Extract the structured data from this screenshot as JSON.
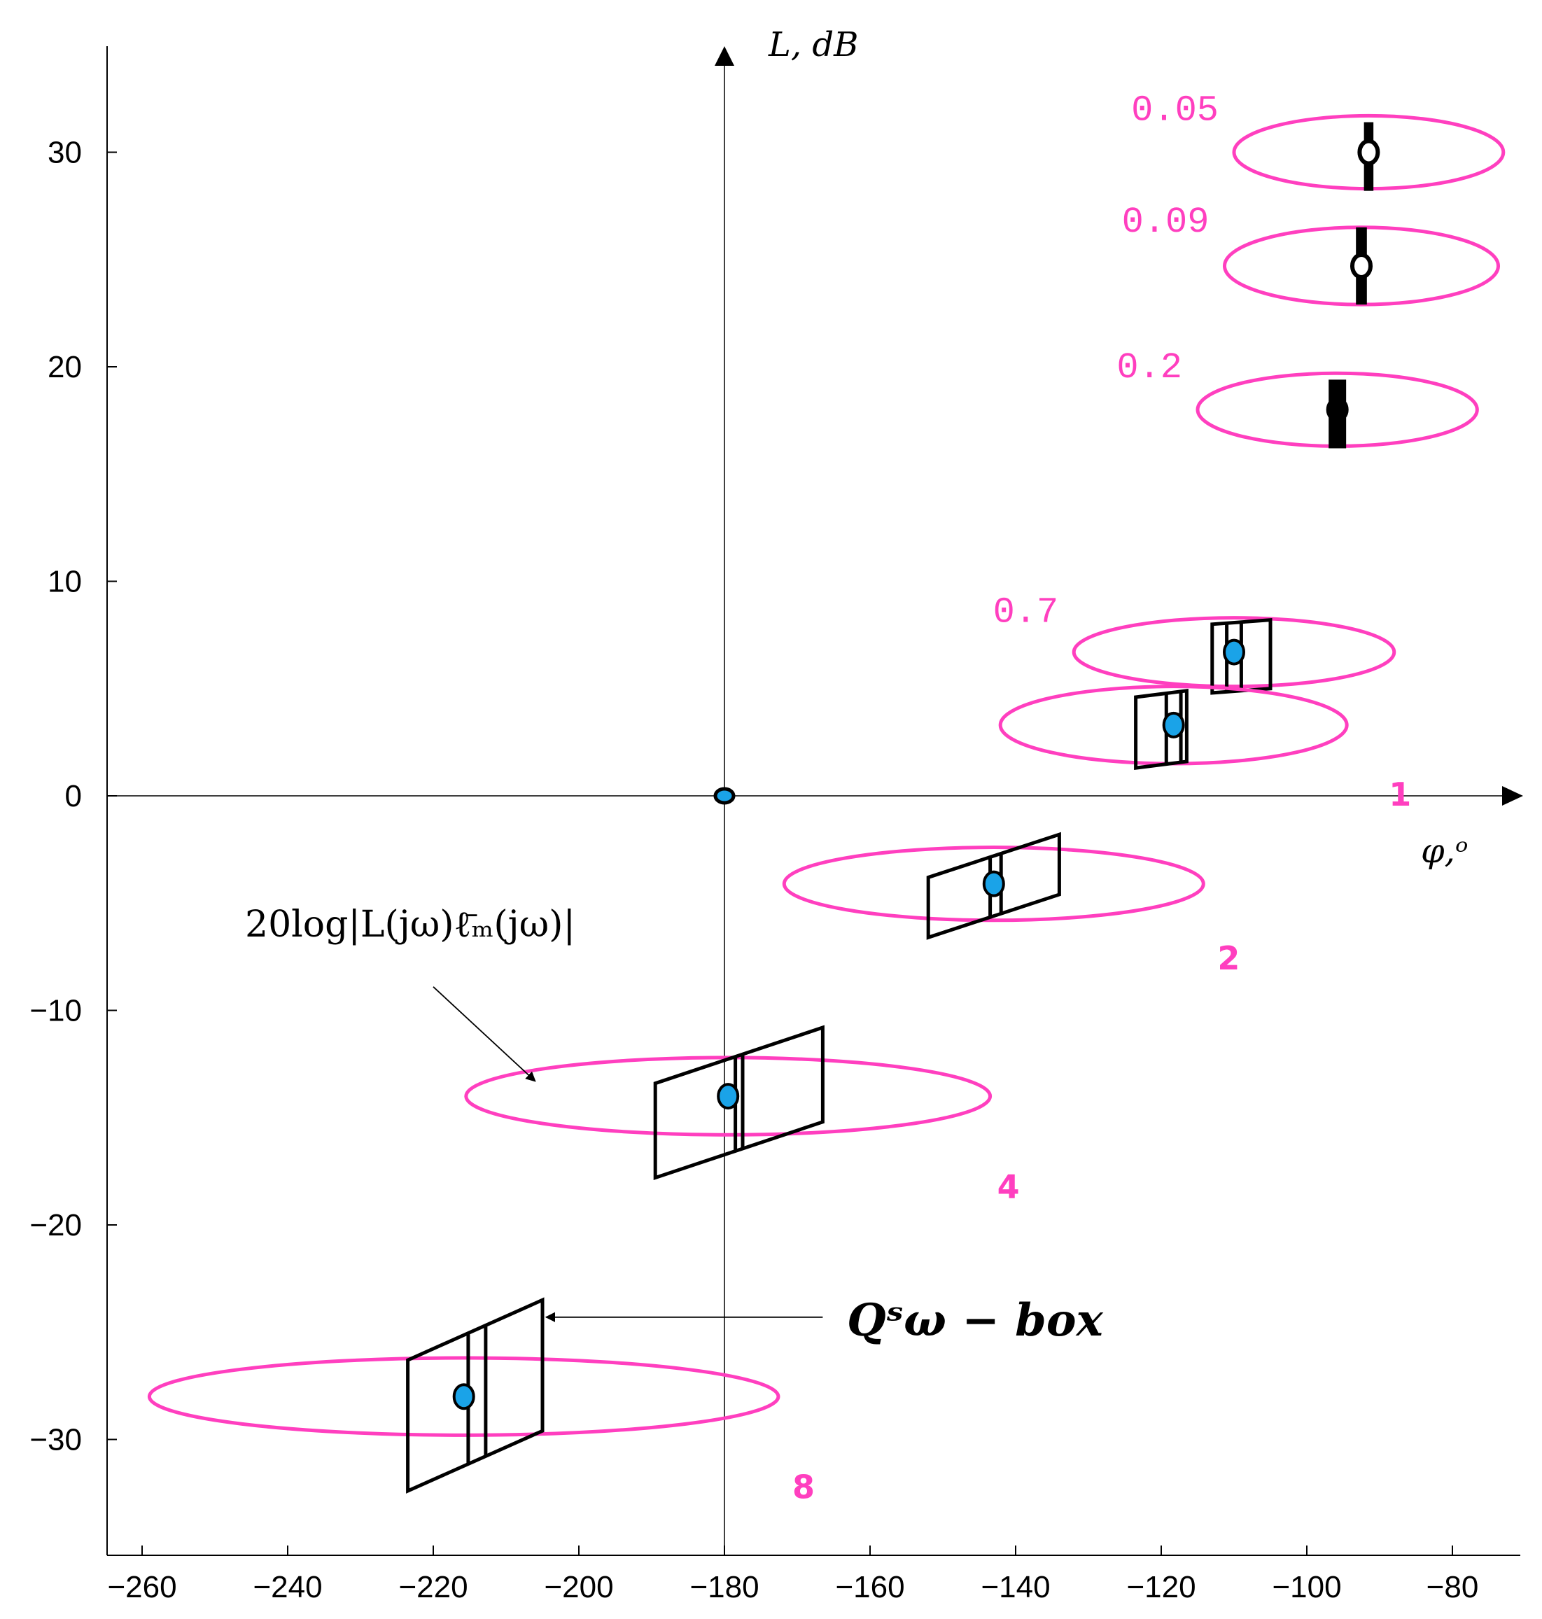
{
  "chart_data": {
    "type": "scatter",
    "title": "",
    "xlabel": "φ,ᵒ",
    "ylabel": "L, dB",
    "xlim": [
      -265,
      -70
    ],
    "ylim": [
      -35,
      35
    ],
    "x_ticks": [
      -260,
      -240,
      -220,
      -200,
      -180,
      -160,
      -140,
      -120,
      -100,
      -80
    ],
    "y_ticks": [
      -30,
      -20,
      -10,
      0,
      10,
      20,
      30
    ],
    "x_tick_labels": [
      "−260",
      "−240",
      "−220",
      "−200",
      "−180",
      "−160",
      "−140",
      "−120",
      "−100",
      "−80"
    ],
    "y_tick_labels": [
      "−30",
      "−20",
      "−10",
      "0",
      "10",
      "20",
      "30"
    ],
    "grid": false,
    "origin_point": {
      "x": -180,
      "y": 0
    },
    "colors": {
      "ellipse": "#ff3fbf",
      "box": "#000000",
      "nominal_filled": "#1aa3e8",
      "label": "#ff3fbf"
    },
    "frequencies": [
      {
        "label": "0.05",
        "center": [
          -91.5,
          30
        ],
        "ellipse_semi_axes": [
          18.5,
          1.7
        ],
        "box": null,
        "bar": {
          "x": -91.5,
          "y0": 28.2,
          "y1": 31.4,
          "width_deg": 1.3
        },
        "marker": "hollow"
      },
      {
        "label": "0.09",
        "center": [
          -92.5,
          24.7
        ],
        "ellipse_semi_axes": [
          18.8,
          1.8
        ],
        "box": null,
        "bar": {
          "x": -92.5,
          "y0": 22.9,
          "y1": 26.5,
          "width_deg": 1.5
        },
        "marker": "hollow"
      },
      {
        "label": "0.2",
        "center": [
          -95.8,
          18
        ],
        "ellipse_semi_axes": [
          19.2,
          1.7
        ],
        "box": null,
        "bar": {
          "x": -95.8,
          "y0": 16.2,
          "y1": 19.4,
          "width_deg": 2.4
        },
        "marker": "filled-black"
      },
      {
        "label": "0.7",
        "center": [
          -110,
          6.7
        ],
        "ellipse_semi_axes": [
          22,
          1.6
        ],
        "box": {
          "x0": -113,
          "x1": -105,
          "y0": 4.8,
          "y1": 8.2,
          "skew_db": 0.2,
          "inner_x0": -111,
          "inner_x1": -109
        },
        "marker": "filled"
      },
      {
        "label": "1",
        "center": [
          -118.3,
          3.3
        ],
        "ellipse_semi_axes": [
          23.8,
          1.8
        ],
        "box": {
          "x0": -123.5,
          "x1": -116.5,
          "y0": 1.3,
          "y1": 4.9,
          "skew_db": 0.3,
          "inner_x0": -119.3,
          "inner_x1": -117.3
        },
        "marker": "filled"
      },
      {
        "label": "2",
        "center": [
          -143,
          -4.1
        ],
        "ellipse_semi_axes": [
          28.8,
          1.7
        ],
        "box": {
          "x0": -152,
          "x1": -134,
          "y0": -6.6,
          "y1": -1.8,
          "skew_db": 2,
          "inner_x0": -143.5,
          "inner_x1": -142
        },
        "marker": "filled"
      },
      {
        "label": "4",
        "center": [
          -179.5,
          -14
        ],
        "ellipse_semi_axes": [
          36,
          1.8
        ],
        "box": {
          "x0": -189.5,
          "x1": -166.5,
          "y0": -17.8,
          "y1": -10.8,
          "skew_db": 2.6,
          "inner_x0": -178.5,
          "inner_x1": -177.5
        },
        "marker": "filled"
      },
      {
        "label": "8",
        "center": [
          -215.8,
          -28
        ],
        "ellipse_semi_axes": [
          43.2,
          1.8
        ],
        "box": {
          "x0": -223.5,
          "x1": -205,
          "y0": -32.4,
          "y1": -23.5,
          "skew_db": 2.8,
          "inner_x0": -215.2,
          "inner_x1": -212.8
        },
        "marker": "filled"
      }
    ],
    "annotations": [
      {
        "text": "20log|L(jω)ℓ̄ₘ(jω)|",
        "arrow_to": [
          -206,
          -13.3
        ],
        "arrow_from": [
          -220,
          -8.9
        ]
      },
      {
        "text": "Qˢω − box",
        "arrow_to": [
          -204.5,
          -24.3
        ],
        "arrow_from": [
          -166.5,
          -24.3
        ]
      }
    ]
  }
}
